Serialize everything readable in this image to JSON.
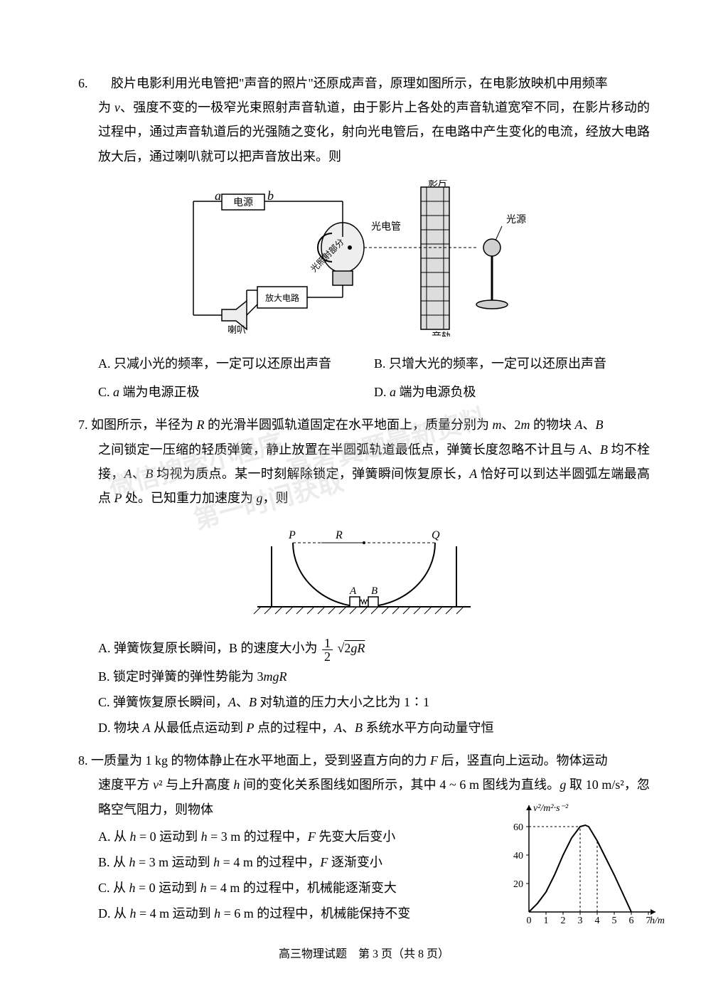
{
  "q6": {
    "num": "6.",
    "text": "胶片电影利用光电管把\"声音的照片\"还原成声音，原理如图所示，在电影放映机中用频率为 ν、强度不变的一极窄光束照射声音轨道，由于影片上各处的声音轨道宽窄不同，在影片移动的过程中，通过声音轨道后的光强随之变化，射向光电管后，在电路中产生变化的电流，经放大电路放大后，通过喇叭就可以把声音放出来。则",
    "optA": "A. 只减小光的频率，一定可以还原出声音",
    "optB": "B. 只增大光的频率，一定可以还原出声音",
    "optC": "C. a 端为电源正极",
    "optD": "D. a 端为电源负极",
    "figure": {
      "labels": {
        "yingpian": "影片",
        "guangyuan": "光源",
        "guangdianguan": "光电管",
        "dianyuan": "电源",
        "fangda": "放大电路",
        "laba": "喇叭",
        "yingui": "音轨",
        "a": "a",
        "b": "b",
        "guangzhao": "光照射部分"
      },
      "colors": {
        "stroke": "#000000",
        "fill_gray": "#d0d0d0",
        "fill_light": "#eeeeee",
        "film_fill": "#dddddd"
      }
    }
  },
  "q7": {
    "num": "7.",
    "text": "如图所示，半径为 R 的光滑半圆弧轨道固定在水平地面上，质量分别为 m、2m 的物块 A、B 之间锁定一压缩的轻质弹簧，静止放置在半圆弧轨道最低点，弹簧长度忽略不计且与 A、B 均不栓接，A、B 均视为质点。某一时刻解除锁定，弹簧瞬间恢复原长，A 恰好可以到达半圆弧左端最高点 P 处。已知重力加速度为 g，则",
    "optA_prefix": "A. 弹簧恢复原长瞬间，B 的速度大小为",
    "optA_suffix_sqrt": "2gR",
    "optB": "B. 锁定时弹簧的弹性势能为 3mgR",
    "optC": "C. 弹簧恢复原长瞬间，A、B 对轨道的压力大小之比为 1∶1",
    "optD": "D. 物块 A 从最低点运动到 P 点的过程中，A、B 系统水平方向动量守恒",
    "figure": {
      "labels": {
        "P": "P",
        "Q": "Q",
        "R": "R",
        "A": "A",
        "B": "B"
      },
      "colors": {
        "stroke": "#000000",
        "fill": "#ffffff"
      }
    }
  },
  "q8": {
    "num": "8.",
    "text": "一质量为 1 kg 的物体静止在水平地面上，受到竖直方向的力 F 后，竖直向上运动。物体运动速度平方 v² 与上升高度 h 间的变化关系图线如图所示，其中 4 ~ 6 m 图线为直线。g 取 10 m/s²，忽略空气阻力，则物体",
    "optA": "A. 从 h = 0 运动到 h = 3 m 的过程中，F 先变大后变小",
    "optB": "B. 从 h = 3 m 运动到 h = 4 m 的过程中，F 逐渐变小",
    "optC": "C. 从 h = 0 运动到 h = 4 m 的过程中，机械能逐渐变大",
    "optD": "D. 从 h = 4 m 运动到 h = 6 m 的过程中，机械能保持不变",
    "chart": {
      "type": "line",
      "xlabel": "h/m",
      "ylabel": "v²/m²·s⁻²",
      "xlim": [
        0,
        7
      ],
      "ylim": [
        0,
        70
      ],
      "xtick_labels": [
        "0",
        "1",
        "2",
        "3",
        "4",
        "5",
        "6",
        "7"
      ],
      "ytick_values": [
        20,
        40,
        60
      ],
      "ytick_labels": [
        "20",
        "40",
        "60"
      ],
      "curve_points": [
        [
          0,
          0
        ],
        [
          0.5,
          6
        ],
        [
          1,
          14
        ],
        [
          1.5,
          26
        ],
        [
          2,
          40
        ],
        [
          2.5,
          52
        ],
        [
          3,
          60
        ],
        [
          3.3,
          61
        ],
        [
          3.5,
          60
        ],
        [
          4,
          50
        ],
        [
          4.5,
          38
        ],
        [
          5,
          26
        ],
        [
          5.5,
          13
        ],
        [
          6,
          0
        ]
      ],
      "dashed_v": [
        3,
        4
      ],
      "dashed_h": [
        60
      ],
      "colors": {
        "axis": "#000000",
        "curve": "#000000",
        "dash": "#000000",
        "background": "#ffffff"
      },
      "line_width": 2,
      "font_size": 14
    }
  },
  "watermarks": {
    "w1": "微信搜索小程序",
    "w2": "第一时间获取",
    "w3": "高考真题最新资料"
  },
  "footer": "高三物理试题　第 3 页（共 8 页）"
}
